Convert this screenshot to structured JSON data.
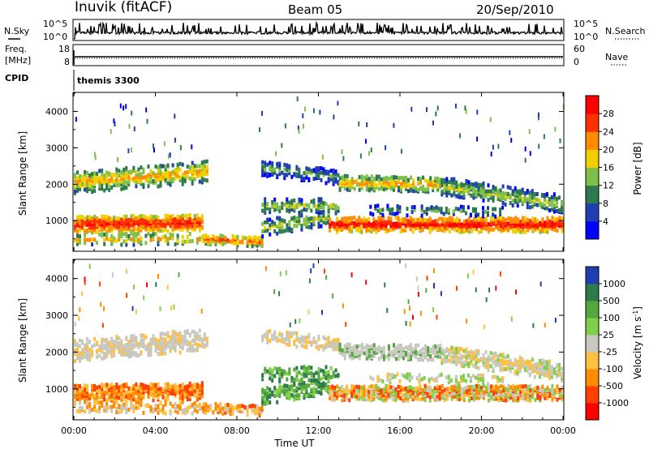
{
  "header": {
    "station": "Inuvik (fitACF)",
    "beam": "Beam 05",
    "date": "20/Sep/2010"
  },
  "strip_labels": {
    "nsky": "N.Sky",
    "nsearch": "N.Search",
    "freq_line1": "Freq.",
    "freq_line2": "[MHz]",
    "nave": "Nave",
    "cpid": "CPID",
    "cpid_value": "themis 3300",
    "noise_top": "10^5",
    "noise_bottom": "10^0",
    "freq_top": "18",
    "freq_bottom": "8",
    "nave_top": "60",
    "nave_bottom": "0"
  },
  "colors": {
    "power_scale": [
      "#0000ff",
      "#1f3fb0",
      "#2e7a4e",
      "#7fc04a",
      "#f2d000",
      "#ff8c00",
      "#ff3000",
      "#ff0000"
    ],
    "velocity_scale": [
      "#1f3fb0",
      "#2e7a4e",
      "#55a840",
      "#7fd048",
      "#c8c8c0",
      "#ffc040",
      "#ff8c00",
      "#ff4000",
      "#ff0000"
    ]
  },
  "chart_data": [
    {
      "type": "heatmap",
      "name": "power",
      "ylabel": "Slant Range [km]",
      "yticks": [
        "1000",
        "2000",
        "3000",
        "4000"
      ],
      "ylim": [
        180,
        4500
      ],
      "xlim_hours": [
        0,
        24
      ],
      "colorbar": {
        "label": "Power [dB]",
        "ticks": [
          "4",
          "8",
          "12",
          "16",
          "20",
          "24",
          "28"
        ],
        "range": [
          0,
          32
        ]
      }
    },
    {
      "type": "heatmap",
      "name": "velocity",
      "ylabel": "Slant Range [km]",
      "yticks": [
        "1000",
        "2000",
        "3000",
        "4000"
      ],
      "ylim": [
        180,
        4500
      ],
      "xlabel": "Time UT",
      "xticks": [
        "00:00",
        "04:00",
        "08:00",
        "12:00",
        "16:00",
        "20:00",
        "00:00"
      ],
      "colorbar": {
        "label": "Velocity [m s",
        "label_sup": "-1",
        "label_end": "]",
        "ticks": [
          "1000",
          "500",
          "100",
          "25",
          "-25",
          "-100",
          "-500",
          "-1000"
        ]
      }
    }
  ]
}
